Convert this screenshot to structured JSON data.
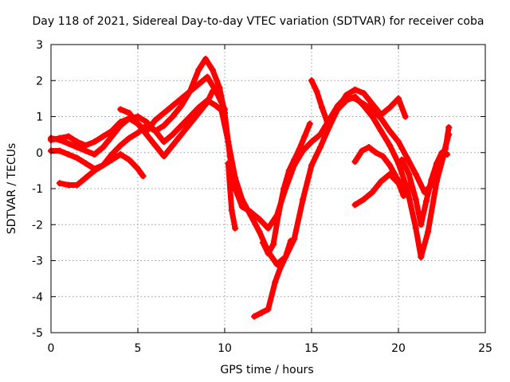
{
  "chart_data": {
    "type": "scatter",
    "title": "Day 118 of 2021, Sidereal Day-to-day VTEC variation (SDTVAR) for receiver coba",
    "xlabel": "GPS time / hours",
    "ylabel": "SDTVAR / TECUs",
    "xlim": [
      0,
      25
    ],
    "ylim": [
      -5,
      3
    ],
    "xticks": [
      0,
      5,
      10,
      15,
      20,
      25
    ],
    "yticks": [
      -5,
      -4,
      -3,
      -2,
      -1,
      0,
      1,
      2,
      3
    ],
    "xtick_labels": [
      "0",
      "5",
      "10",
      "15",
      "20",
      "25"
    ],
    "ytick_labels": [
      "-5",
      "-4",
      "-3",
      "-2",
      "-1",
      "0",
      "1",
      "2",
      "3"
    ],
    "grid": true,
    "legend": false,
    "marker": "plus",
    "color": "#ff0000",
    "series": [
      {
        "x": [
          0,
          0.5,
          1,
          1.5,
          2,
          2.5,
          3,
          3.5,
          4,
          4.5,
          5,
          5.5,
          6,
          6.5,
          7,
          7.5,
          8,
          8.5,
          9,
          9.5,
          10
        ],
        "y": [
          0.35,
          0.4,
          0.45,
          0.3,
          0.2,
          0.3,
          0.45,
          0.6,
          0.85,
          0.95,
          0.8,
          0.6,
          0.9,
          1.1,
          1.3,
          1.5,
          1.7,
          1.9,
          2.1,
          1.7,
          1.2
        ]
      },
      {
        "x": [
          0,
          0.5,
          1,
          1.5,
          2,
          2.5,
          3,
          3.5,
          4,
          4.5,
          5,
          5.5,
          6,
          6.5,
          7,
          7.5,
          8,
          8.5,
          8.9,
          9.3,
          9.7,
          10
        ],
        "y": [
          0.4,
          0.35,
          0.25,
          0.15,
          0.05,
          -0.05,
          0.15,
          0.45,
          0.75,
          0.95,
          1.0,
          0.85,
          0.6,
          0.75,
          1.0,
          1.3,
          1.7,
          2.3,
          2.6,
          2.3,
          1.8,
          1.1
        ]
      },
      {
        "x": [
          0,
          0.5,
          1,
          1.5,
          2,
          2.5,
          3,
          3.5,
          4,
          4.5,
          5,
          5.3
        ],
        "y": [
          0.05,
          0.05,
          -0.05,
          -0.15,
          -0.3,
          -0.45,
          -0.35,
          -0.2,
          -0.05,
          -0.2,
          -0.45,
          -0.65
        ]
      },
      {
        "x": [
          0.5,
          1,
          1.5,
          2,
          2.5,
          3,
          3.5,
          4,
          4.5,
          5,
          5.5,
          6,
          6.5,
          7,
          7.5,
          8,
          8.5,
          9,
          9.5,
          10
        ],
        "y": [
          -0.85,
          -0.9,
          -0.9,
          -0.7,
          -0.5,
          -0.35,
          -0.05,
          0.2,
          0.4,
          0.55,
          0.75,
          0.6,
          0.3,
          0.5,
          0.75,
          1.0,
          1.25,
          1.45,
          1.3,
          1.1
        ]
      },
      {
        "x": [
          4,
          4.5,
          5,
          5.5,
          6,
          6.5,
          7,
          7.5,
          8,
          8.5,
          9,
          9.3
        ],
        "y": [
          1.2,
          1.1,
          0.8,
          0.5,
          0.2,
          -0.1,
          0.2,
          0.5,
          0.8,
          1.1,
          1.4,
          1.7
        ]
      },
      {
        "x": [
          10,
          10.3,
          10.6,
          11,
          11.5,
          12,
          12.5,
          13,
          13.5,
          14,
          14.5,
          15,
          15.5,
          16,
          16.5,
          17,
          17.5,
          18,
          18.5,
          19,
          19.5,
          20,
          20.5,
          21,
          21.5,
          22,
          22.5,
          22.9
        ],
        "y": [
          1.1,
          -0.1,
          -1.0,
          -1.5,
          -1.65,
          -1.85,
          -2.1,
          -1.75,
          -1.0,
          -0.35,
          0.05,
          0.3,
          0.5,
          0.9,
          1.3,
          1.55,
          1.5,
          1.35,
          1.2,
          0.95,
          0.6,
          0.3,
          -0.15,
          -0.6,
          -1.1,
          -0.85,
          -0.2,
          0.5
        ]
      },
      {
        "x": [
          9.8,
          10.2,
          10.6,
          11,
          11.5,
          12,
          12.5,
          13,
          13.5,
          14,
          14.5,
          15,
          15.5,
          16,
          16.5,
          17,
          17.5,
          18,
          18.5,
          19,
          19.5,
          20,
          20.5,
          21,
          21.3,
          21.7,
          22.2,
          22.7,
          22.9
        ],
        "y": [
          1.2,
          0.3,
          -0.7,
          -1.3,
          -1.75,
          -2.2,
          -2.75,
          -3.1,
          -2.9,
          -2.4,
          -1.3,
          -0.35,
          0.15,
          0.7,
          1.2,
          1.45,
          1.55,
          1.3,
          1.0,
          0.6,
          0.2,
          -0.3,
          -1.0,
          -2.1,
          -2.9,
          -2.2,
          -0.8,
          0.1,
          0.7
        ]
      },
      {
        "x": [
          10.2,
          10.4,
          10.6
        ],
        "y": [
          -0.3,
          -1.6,
          -2.1
        ]
      },
      {
        "x": [
          11.7,
          12.1,
          12.5,
          12.9,
          13.2,
          13.5,
          13.8
        ],
        "y": [
          -4.55,
          -4.45,
          -4.35,
          -3.6,
          -3.2,
          -2.9,
          -2.45
        ]
      },
      {
        "x": [
          12.2,
          12.5,
          12.8,
          13.1,
          13.4,
          13.7,
          14.0,
          14.3,
          14.6,
          14.9
        ],
        "y": [
          -2.5,
          -2.8,
          -2.55,
          -1.7,
          -1.0,
          -0.5,
          -0.2,
          0.1,
          0.45,
          0.8
        ]
      },
      {
        "x": [
          15,
          15.3,
          15.6,
          15.9,
          16.2,
          16.6,
          17,
          17.5,
          18,
          18.5,
          19,
          19.5,
          20,
          20.4
        ],
        "y": [
          2.0,
          1.7,
          1.25,
          0.85,
          0.95,
          1.3,
          1.6,
          1.75,
          1.65,
          1.35,
          1.05,
          1.25,
          1.5,
          1.0
        ]
      },
      {
        "x": [
          17.5,
          18,
          18.5,
          19,
          19.5,
          20,
          20.3,
          20.6
        ],
        "y": [
          -1.45,
          -1.3,
          -1.1,
          -0.8,
          -0.6,
          -0.85,
          -1.2,
          -0.9
        ]
      },
      {
        "x": [
          17.5,
          17.9,
          18.3,
          18.7,
          19.1,
          19.5,
          19.9,
          20.3
        ],
        "y": [
          -0.25,
          0.05,
          0.15,
          0.0,
          -0.1,
          -0.35,
          -0.7,
          -1.0
        ]
      },
      {
        "x": [
          20.2,
          20.6,
          21.0,
          21.3,
          21.6,
          21.9,
          22.2,
          22.5,
          22.8
        ],
        "y": [
          -0.2,
          -0.6,
          -1.3,
          -2.0,
          -1.35,
          -0.75,
          -0.3,
          0.0,
          -0.05
        ]
      }
    ]
  }
}
